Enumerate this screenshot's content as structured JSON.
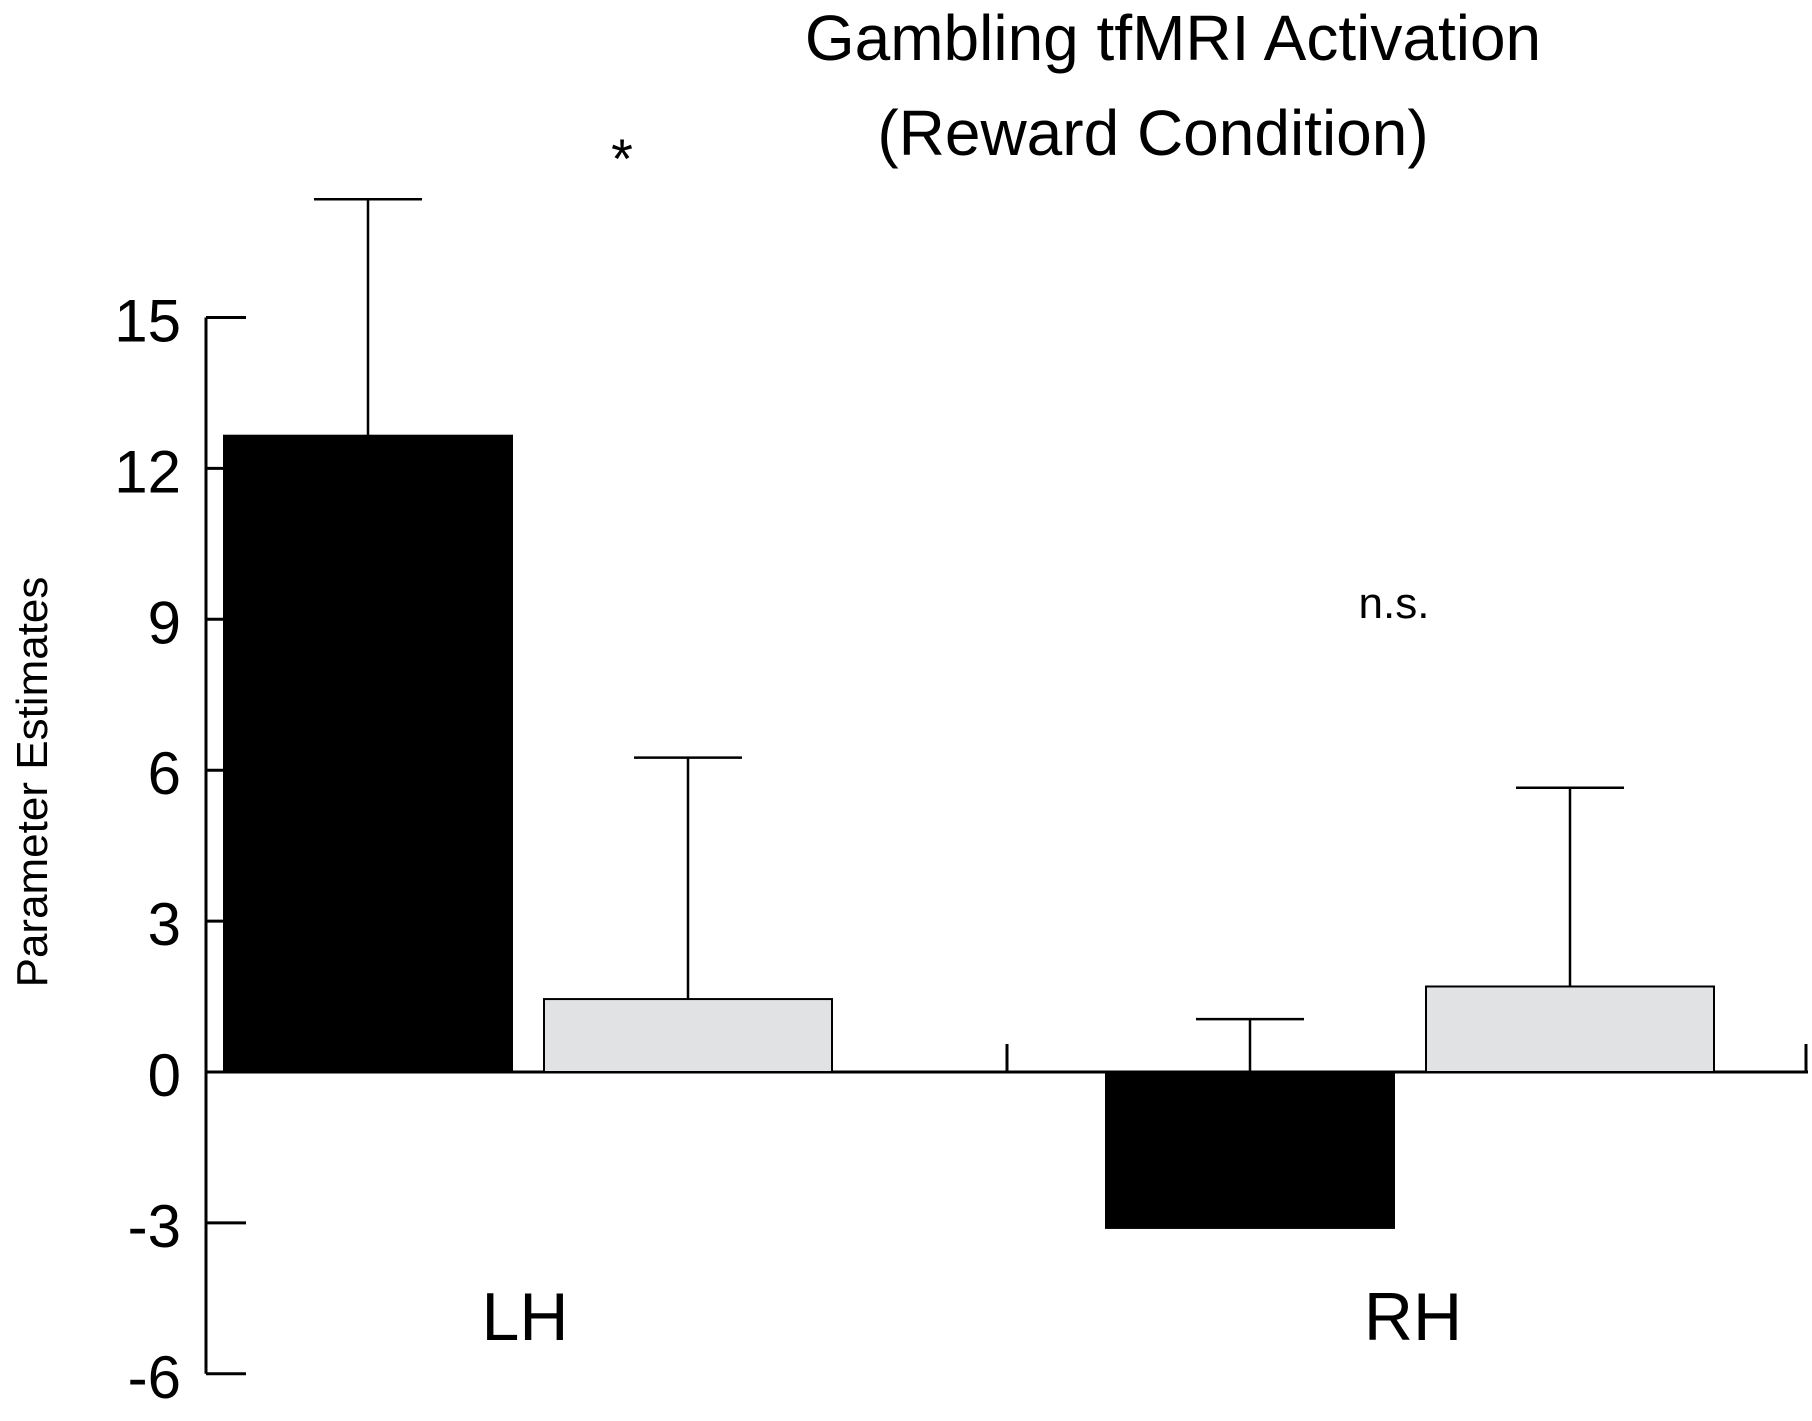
{
  "chart_data": {
    "type": "bar",
    "title": "Gambling tfMRI Activation",
    "subtitle": "(Reward Condition)",
    "xlabel": "",
    "ylabel": "Parameter Estimates",
    "ylim": [
      -6,
      15
    ],
    "yticks": [
      15,
      12,
      9,
      6,
      3,
      0,
      -3,
      -6
    ],
    "ytick_labels": [
      "15",
      "12",
      "9",
      "6",
      "3",
      "0",
      "-3",
      "-6"
    ],
    "categories": [
      "LH",
      "RH"
    ],
    "legend": "none",
    "grid": false,
    "series": [
      {
        "color": "#000000",
        "values": [
          12.65,
          -3.1
        ],
        "error_upper": [
          17.35,
          1.05
        ]
      },
      {
        "color": "#e1e2e4",
        "values": [
          1.45,
          1.7
        ],
        "error_upper": [
          6.25,
          5.65
        ]
      }
    ],
    "annotations": [
      {
        "text": "*",
        "category": "LH"
      },
      {
        "text": "n.s.",
        "category": "RH"
      }
    ]
  }
}
